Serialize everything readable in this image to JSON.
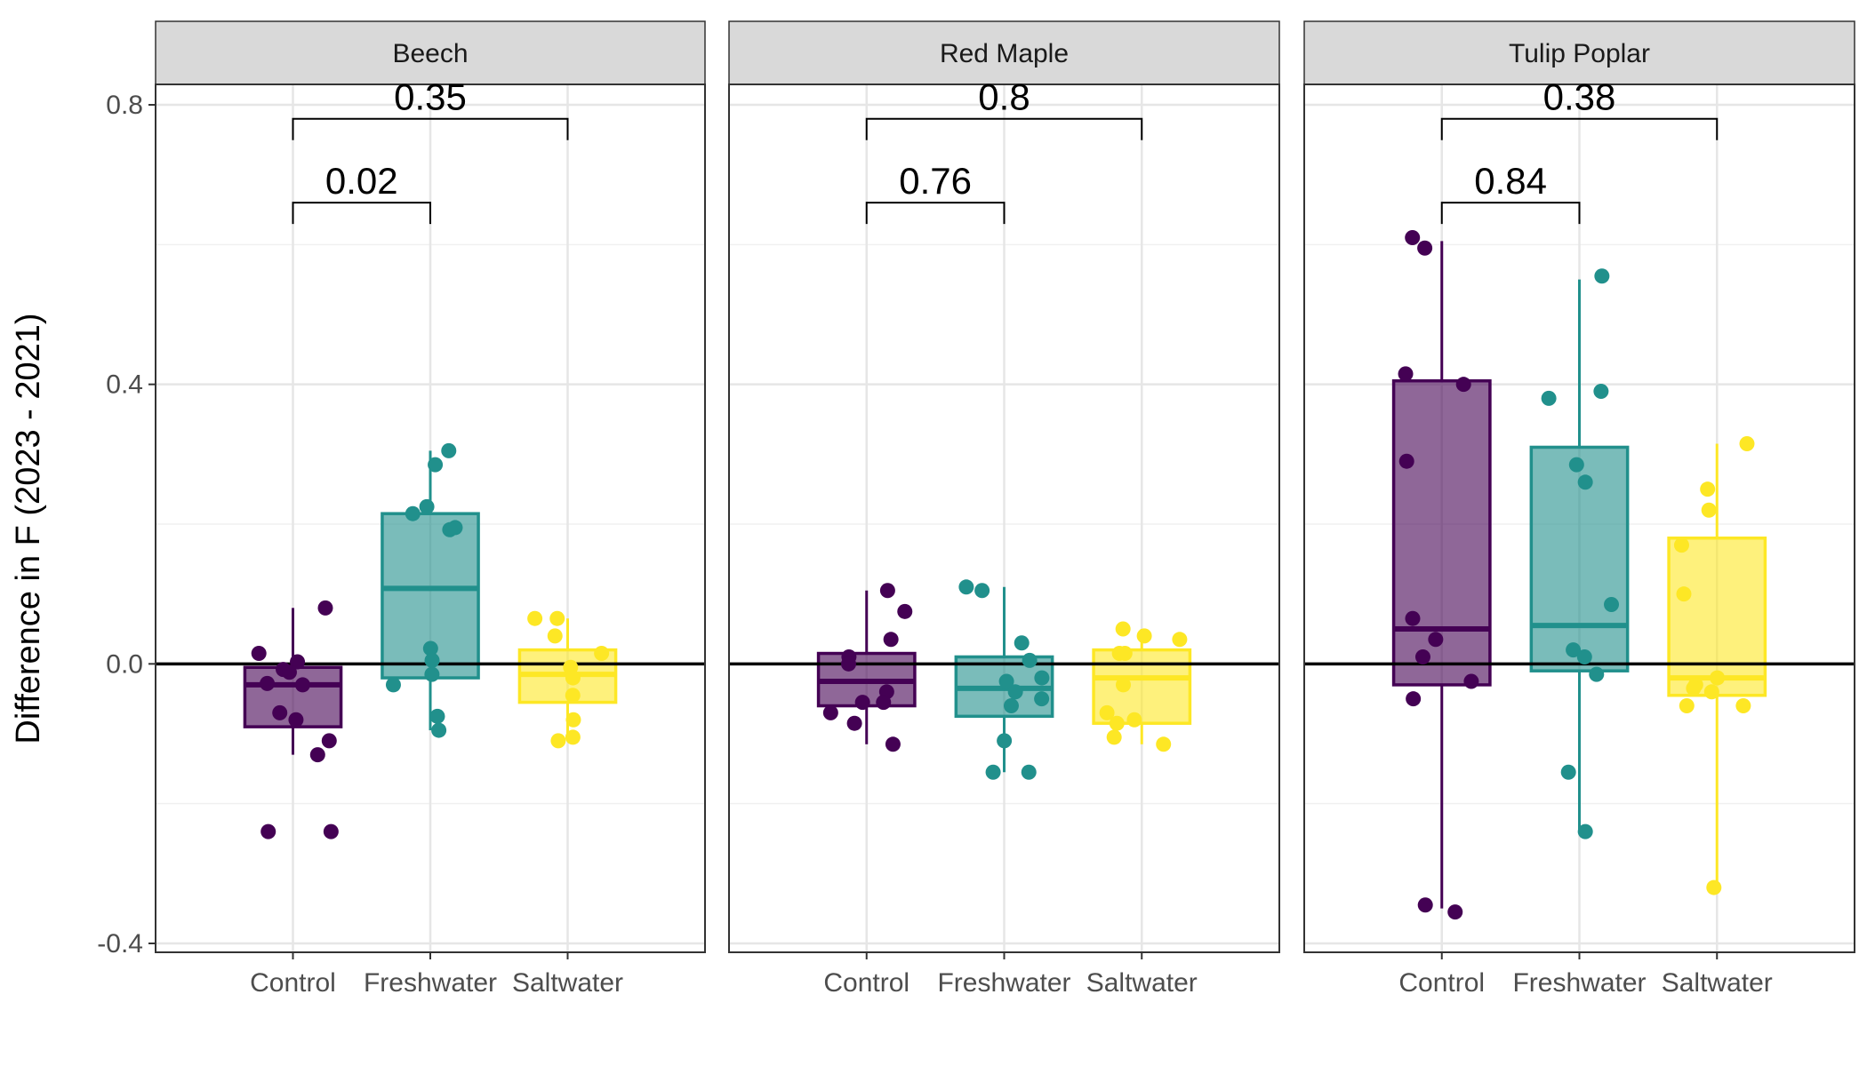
{
  "chart_data": {
    "type": "boxplot",
    "ylabel": "Difference in F (2023 - 2021)",
    "xlabel": "",
    "ylim": [
      -0.4,
      0.84
    ],
    "y_ticks": [
      {
        "value": -0.4,
        "label": "-0.4"
      },
      {
        "value": 0.0,
        "label": "0.0"
      },
      {
        "value": 0.4,
        "label": "0.4"
      },
      {
        "value": 0.8,
        "label": "0.8"
      }
    ],
    "y_minor_ticks": [
      -0.2,
      0.2,
      0.6
    ],
    "reference_line": 0,
    "categories": [
      "Control",
      "Freshwater",
      "Saltwater"
    ],
    "colors": {
      "Control": "#440154",
      "Freshwater": "#21908C",
      "Saltwater": "#FDE725"
    },
    "facets": [
      {
        "name": "Beech",
        "comparisons": [
          {
            "from": "Control",
            "to": "Freshwater",
            "label": "0.02",
            "y": 0.66
          },
          {
            "from": "Control",
            "to": "Saltwater",
            "label": "0.35",
            "y": 0.78
          }
        ],
        "groups": [
          {
            "name": "Control",
            "q1": -0.09,
            "median": -0.03,
            "q3": -0.005,
            "whisker_low": -0.13,
            "whisker_high": 0.08,
            "points": [
              0.08,
              0.015,
              0.003,
              -0.008,
              -0.012,
              -0.03,
              -0.028,
              -0.07,
              -0.08,
              -0.11,
              -0.13,
              -0.24,
              -0.24
            ]
          },
          {
            "name": "Freshwater",
            "q1": -0.02,
            "median": 0.108,
            "q3": 0.215,
            "whisker_low": -0.095,
            "whisker_high": 0.305,
            "points": [
              0.305,
              0.285,
              0.225,
              0.215,
              0.195,
              0.192,
              0.022,
              0.005,
              -0.015,
              -0.03,
              -0.075,
              -0.095
            ]
          },
          {
            "name": "Saltwater",
            "q1": -0.055,
            "median": -0.015,
            "q3": 0.02,
            "whisker_low": -0.11,
            "whisker_high": 0.065,
            "points": [
              0.065,
              0.065,
              0.04,
              0.015,
              -0.005,
              -0.02,
              -0.045,
              -0.08,
              -0.105,
              -0.11
            ]
          }
        ]
      },
      {
        "name": "Red Maple",
        "comparisons": [
          {
            "from": "Control",
            "to": "Freshwater",
            "label": "0.76",
            "y": 0.66
          },
          {
            "from": "Control",
            "to": "Saltwater",
            "label": "0.8",
            "y": 0.78
          }
        ],
        "groups": [
          {
            "name": "Control",
            "q1": -0.06,
            "median": -0.025,
            "q3": 0.015,
            "whisker_low": -0.115,
            "whisker_high": 0.105,
            "points": [
              0.105,
              0.075,
              0.035,
              0.01,
              0.0,
              -0.04,
              -0.055,
              -0.055,
              -0.07,
              -0.085,
              -0.115
            ]
          },
          {
            "name": "Freshwater",
            "q1": -0.075,
            "median": -0.035,
            "q3": 0.01,
            "whisker_low": -0.155,
            "whisker_high": 0.11,
            "points": [
              0.11,
              0.105,
              0.03,
              0.005,
              -0.02,
              -0.025,
              -0.04,
              -0.05,
              -0.06,
              -0.11,
              -0.155,
              -0.155
            ]
          },
          {
            "name": "Saltwater",
            "q1": -0.085,
            "median": -0.02,
            "q3": 0.02,
            "whisker_low": -0.115,
            "whisker_high": 0.05,
            "points": [
              0.05,
              0.04,
              0.035,
              0.015,
              0.015,
              -0.03,
              -0.07,
              -0.08,
              -0.085,
              -0.105,
              -0.115
            ]
          }
        ]
      },
      {
        "name": "Tulip Poplar",
        "comparisons": [
          {
            "from": "Control",
            "to": "Freshwater",
            "label": "0.84",
            "y": 0.66
          },
          {
            "from": "Control",
            "to": "Saltwater",
            "label": "0.38",
            "y": 0.78
          }
        ],
        "groups": [
          {
            "name": "Control",
            "q1": -0.03,
            "median": 0.05,
            "q3": 0.405,
            "whisker_low": -0.35,
            "whisker_high": 0.605,
            "points": [
              0.61,
              0.595,
              0.415,
              0.4,
              0.29,
              0.065,
              0.035,
              0.01,
              -0.025,
              -0.05,
              -0.345,
              -0.355
            ]
          },
          {
            "name": "Freshwater",
            "q1": -0.01,
            "median": 0.055,
            "q3": 0.31,
            "whisker_low": -0.24,
            "whisker_high": 0.55,
            "points": [
              0.555,
              0.39,
              0.38,
              0.285,
              0.26,
              0.085,
              0.02,
              0.01,
              -0.015,
              -0.155,
              -0.24
            ]
          },
          {
            "name": "Saltwater",
            "q1": -0.045,
            "median": -0.02,
            "q3": 0.18,
            "whisker_low": -0.32,
            "whisker_high": 0.315,
            "points": [
              0.315,
              0.25,
              0.22,
              0.17,
              0.1,
              -0.02,
              -0.03,
              -0.035,
              -0.04,
              -0.06,
              -0.06,
              -0.32
            ]
          }
        ]
      }
    ]
  }
}
